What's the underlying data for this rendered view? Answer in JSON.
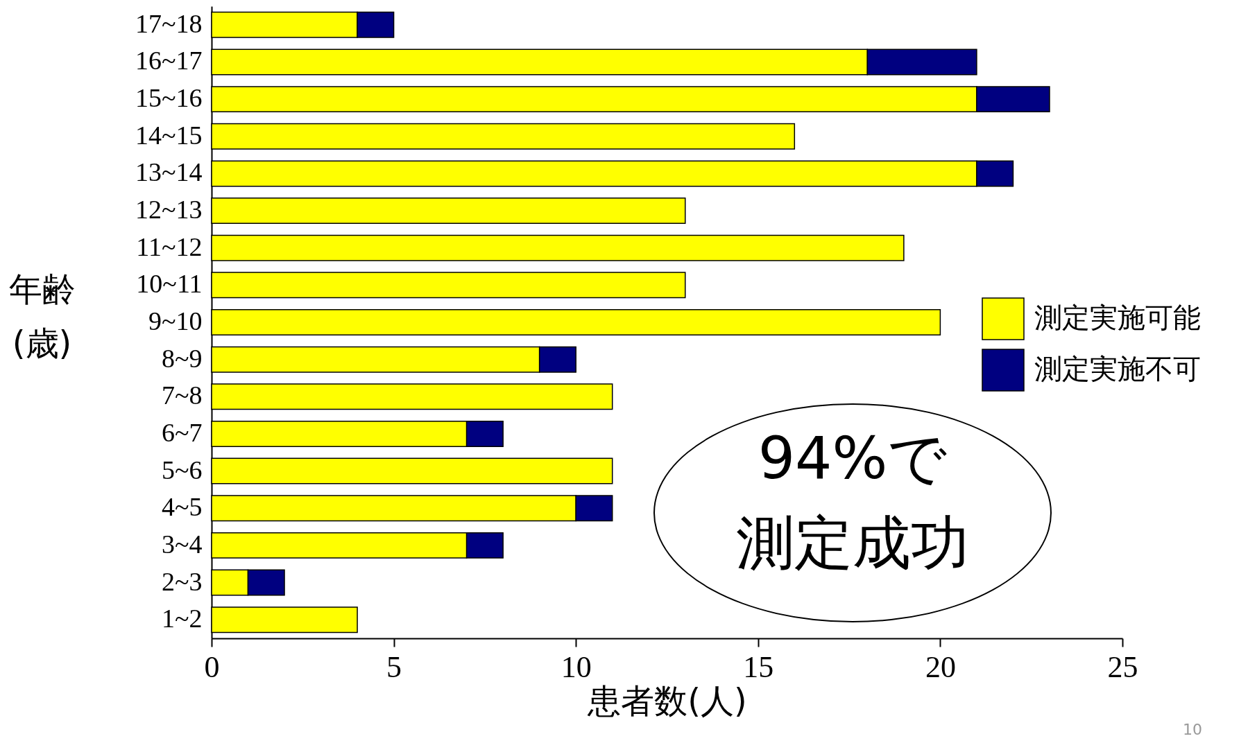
{
  "chart_data": {
    "type": "bar",
    "orientation": "horizontal",
    "stacked": true,
    "xlabel": "患者数(人)",
    "ylabel": "年齢\n(歳)",
    "categories": [
      "17~18",
      "16~17",
      "15~16",
      "14~15",
      "13~14",
      "12~13",
      "11~12",
      "10~11",
      "9~10",
      "8~9",
      "7~8",
      "6~7",
      "5~6",
      "4~5",
      "3~4",
      "2~3",
      "1~2"
    ],
    "series": [
      {
        "name": "測定実施可能",
        "color": "#ffff00",
        "values": [
          4,
          18,
          21,
          16,
          21,
          13,
          19,
          13,
          20,
          9,
          11,
          7,
          11,
          10,
          7,
          1,
          4
        ]
      },
      {
        "name": "測定実施不可",
        "color": "#000080",
        "values": [
          1,
          3,
          2,
          null,
          1,
          null,
          null,
          null,
          null,
          1,
          null,
          1,
          null,
          1,
          1,
          1,
          null
        ]
      }
    ],
    "xlim": [
      0,
      25
    ],
    "xticks": [
      0,
      5,
      10,
      15,
      20,
      25
    ],
    "grid": false,
    "legend": "right",
    "annotations": [
      "94%で",
      "測定成功",
      "10"
    ]
  }
}
